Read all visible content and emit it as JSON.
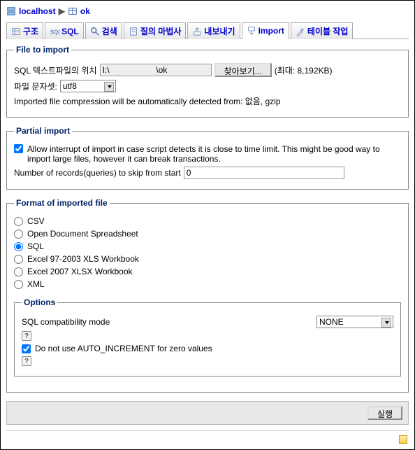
{
  "breadcrumb": {
    "host": "localhost",
    "table": "ok"
  },
  "tabs": [
    {
      "label": "구조",
      "active": false
    },
    {
      "label": "SQL",
      "active": false
    },
    {
      "label": "검색",
      "active": false
    },
    {
      "label": "질의 마법사",
      "active": false
    },
    {
      "label": "내보내기",
      "active": false
    },
    {
      "label": "Import",
      "active": true
    },
    {
      "label": "테이블 작업",
      "active": false
    }
  ],
  "file_to_import": {
    "legend": "File to import",
    "location_label": "SQL 텍스트파일의 위치",
    "location_value": "I:\\                    \\ok",
    "browse_label": "찾아보기...",
    "max_size": "(최대: 8,192KB)",
    "charset_label": "파일 문자셋:",
    "charset_value": "utf8",
    "compression_note": "Imported file compression will be automatically detected from: 없음, gzip"
  },
  "partial_import": {
    "legend": "Partial import",
    "allow_interrupt_checked": true,
    "allow_interrupt_label": "Allow interrupt of import in case script detects it is close to time limit. This might be good way to import large files, however it can break transactions.",
    "skip_label": "Number of records(queries) to skip from start",
    "skip_value": "0"
  },
  "format": {
    "legend": "Format of imported file",
    "options": [
      {
        "label": "CSV",
        "selected": false
      },
      {
        "label": "Open Document Spreadsheet",
        "selected": false
      },
      {
        "label": "SQL",
        "selected": true
      },
      {
        "label": "Excel 97-2003 XLS Workbook",
        "selected": false
      },
      {
        "label": "Excel 2007 XLSX Workbook",
        "selected": false
      },
      {
        "label": "XML",
        "selected": false
      }
    ],
    "sub": {
      "legend": "Options",
      "compat_label": "SQL compatibility mode",
      "compat_value": "NONE",
      "ai_checked": true,
      "ai_label": "Do not use AUTO_INCREMENT for zero values"
    }
  },
  "submit_label": "실행"
}
